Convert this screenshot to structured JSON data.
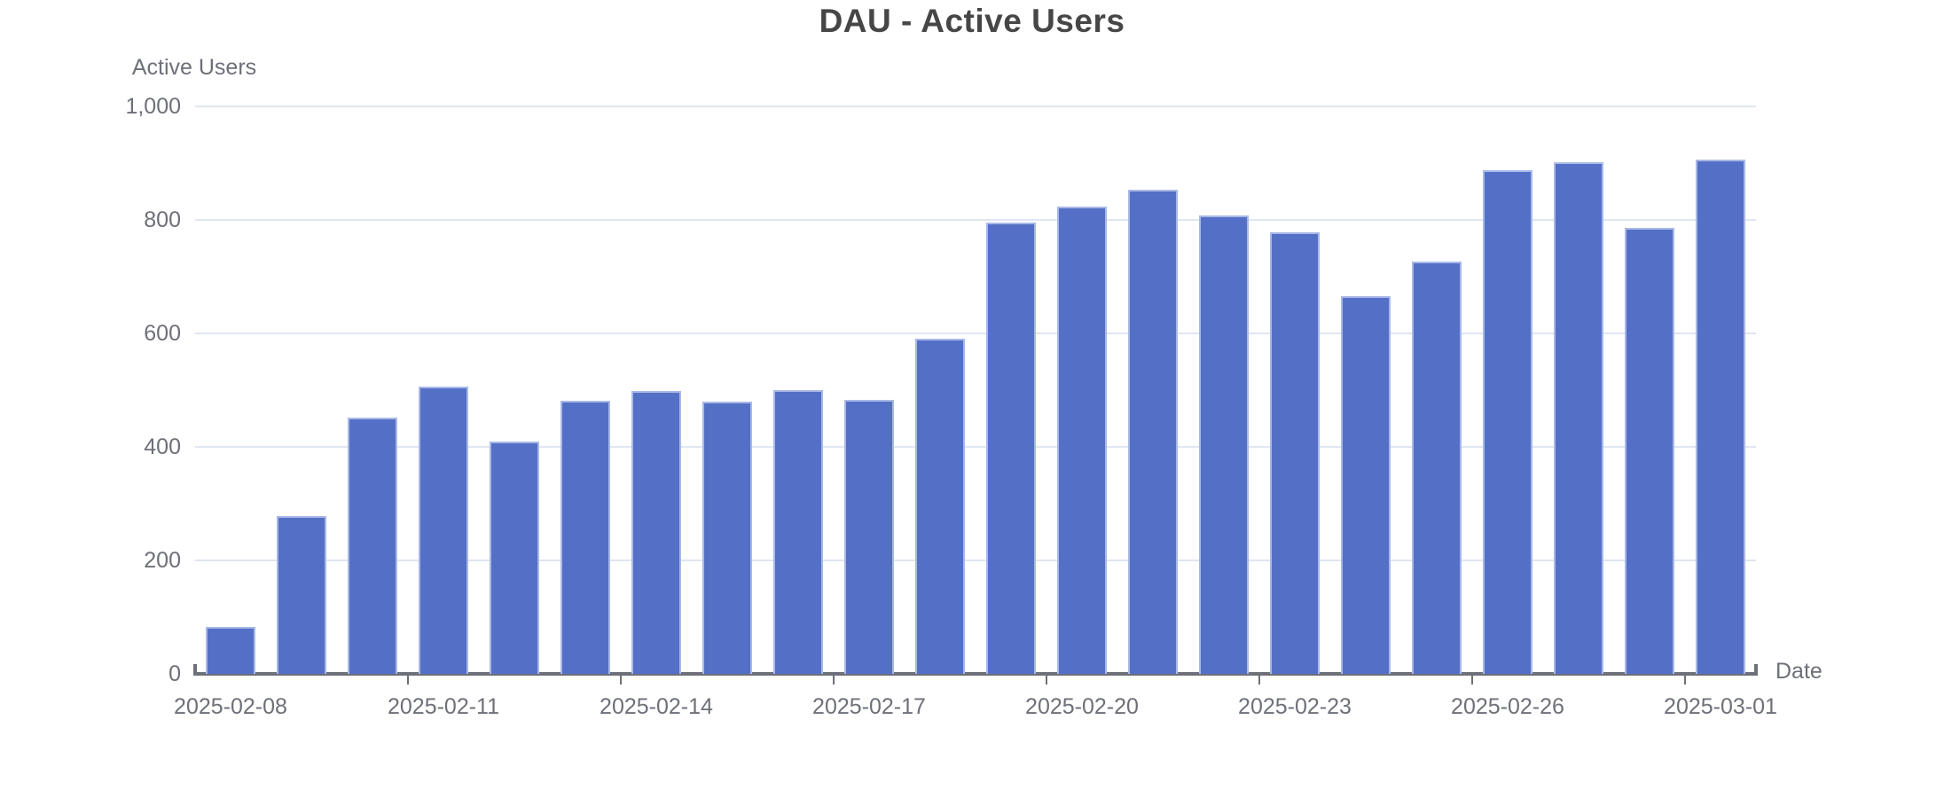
{
  "title": "DAU - Active Users",
  "y_axis": {
    "name": "Active Users",
    "ticks": [
      {
        "label": "0",
        "value": 0
      },
      {
        "label": "200",
        "value": 200
      },
      {
        "label": "400",
        "value": 400
      },
      {
        "label": "600",
        "value": 600
      },
      {
        "label": "800",
        "value": 800
      },
      {
        "label": "1,000",
        "value": 1000
      }
    ]
  },
  "x_axis": {
    "name": "Date",
    "labeled_ticks": [
      {
        "label": "2025-02-08",
        "index": 0
      },
      {
        "label": "2025-02-11",
        "index": 3
      },
      {
        "label": "2025-02-14",
        "index": 6
      },
      {
        "label": "2025-02-17",
        "index": 9
      },
      {
        "label": "2025-02-20",
        "index": 12
      },
      {
        "label": "2025-02-23",
        "index": 15
      },
      {
        "label": "2025-02-26",
        "index": 18
      },
      {
        "label": "2025-03-01",
        "index": 21
      }
    ]
  },
  "chart_data": {
    "type": "bar",
    "title": "DAU - Active Users",
    "xlabel": "Date",
    "ylabel": "Active Users",
    "ylim": [
      0,
      1000
    ],
    "grid": true,
    "legend": "none",
    "x": [
      "2025-02-08",
      "2025-02-09",
      "2025-02-10",
      "2025-02-11",
      "2025-02-12",
      "2025-02-13",
      "2025-02-14",
      "2025-02-15",
      "2025-02-16",
      "2025-02-17",
      "2025-02-18",
      "2025-02-19",
      "2025-02-20",
      "2025-02-21",
      "2025-02-22",
      "2025-02-23",
      "2025-02-24",
      "2025-02-25",
      "2025-02-26",
      "2025-02-27",
      "2025-02-28",
      "2025-03-01"
    ],
    "values": [
      83,
      278,
      452,
      506,
      409,
      481,
      498,
      480,
      500,
      483,
      591,
      795,
      823,
      853,
      808,
      778,
      666,
      727,
      888,
      902,
      786,
      906
    ]
  },
  "colors": {
    "bar_fill": "#5470C6",
    "bar_border": "#A9B8E6",
    "gridline": "#E0E6F1",
    "axis": "#6E7079",
    "tick_text": "#6E7079",
    "title_text": "#464646",
    "background": "#FFFFFF"
  }
}
